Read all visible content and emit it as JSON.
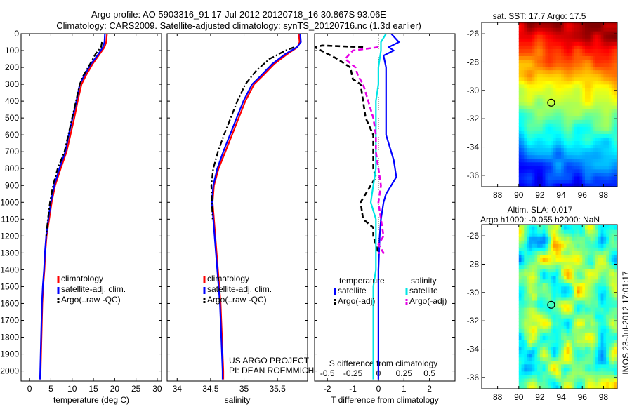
{
  "header": {
    "title_line1": "Argo profile: AO 5903316_91 17-Jul-2012 20120718_16 30.867S 93.06E",
    "title_line2": "Climatology: CARS2009. Satellite-adjusted climatology: synTS_20120716.nc (1.3d earlier)"
  },
  "chart_data": [
    {
      "type": "line",
      "id": "temperature",
      "xlabel": "temperature (deg C)",
      "ylabel": "",
      "xlim": [
        -2,
        31
      ],
      "ylim": [
        2060,
        0
      ],
      "xticks": [
        0,
        5,
        10,
        15,
        20,
        25,
        30
      ],
      "yticks": [
        0,
        100,
        200,
        300,
        400,
        500,
        600,
        700,
        800,
        900,
        1000,
        1100,
        1200,
        1300,
        1400,
        1500,
        1600,
        1700,
        1800,
        1900,
        2000
      ],
      "legend": [
        "climatology",
        "satellite-adj. clim.",
        "Argo(..raw -QC)"
      ],
      "legend_position": "bottom-right",
      "series": [
        {
          "name": "climatology",
          "color": "#ff0000",
          "style": "solid",
          "x": [
            18.2,
            18.0,
            17.6,
            16.5,
            14.8,
            13.2,
            12.2,
            11.3,
            10.5,
            9.6,
            8.7,
            7.3,
            6.0,
            5.2,
            4.6,
            4.0,
            3.7,
            3.5,
            3.2,
            3.0,
            2.9,
            2.8,
            2.7,
            2.6,
            2.55
          ],
          "y": [
            0,
            50,
            80,
            120,
            180,
            250,
            300,
            400,
            500,
            600,
            700,
            800,
            900,
            1000,
            1100,
            1200,
            1300,
            1400,
            1500,
            1600,
            1700,
            1800,
            1900,
            2000,
            2050
          ]
        },
        {
          "name": "satellite-adj. clim.",
          "color": "#0000ff",
          "style": "solid",
          "x": [
            17.7,
            17.6,
            17.2,
            16.2,
            14.4,
            12.8,
            11.8,
            11.0,
            10.1,
            9.2,
            8.4,
            7.0,
            5.8,
            5.0,
            4.4,
            3.9,
            3.6,
            3.4,
            3.1,
            2.9,
            2.8,
            2.7,
            2.6,
            2.5,
            2.45
          ],
          "y": [
            0,
            50,
            80,
            120,
            180,
            250,
            300,
            400,
            500,
            600,
            700,
            800,
            900,
            1000,
            1100,
            1200,
            1300,
            1400,
            1500,
            1600,
            1700,
            1800,
            1900,
            2000,
            2050
          ]
        },
        {
          "name": "Argo(..raw -QC)",
          "color": "#000000",
          "style": "dashdot",
          "x": [
            17.0,
            16.8,
            15.5,
            14.2,
            12.6,
            11.8,
            10.9,
            10.0,
            9.1,
            8.2,
            6.6,
            5.5,
            4.8,
            4.3,
            3.9
          ],
          "y": [
            50,
            80,
            120,
            180,
            250,
            300,
            400,
            500,
            600,
            700,
            800,
            900,
            1000,
            1100,
            1200
          ]
        }
      ]
    },
    {
      "type": "line",
      "id": "salinity",
      "xlabel": "salinity",
      "ylabel": "",
      "xlim": [
        33.85,
        35.95
      ],
      "ylim": [
        2060,
        0
      ],
      "xticks": [
        34,
        34.5,
        35,
        35.5
      ],
      "legend": [
        "climatology",
        "satellite-adj. clim.",
        "Argo(..raw -QC)"
      ],
      "legend_position": "bottom-right",
      "annotations": [
        "US ARGO PROJECT",
        "PI: DEAN ROEMMICH"
      ],
      "series": [
        {
          "name": "climatology",
          "color": "#ff0000",
          "style": "solid",
          "x": [
            35.82,
            35.83,
            35.8,
            35.65,
            35.45,
            35.28,
            35.15,
            35.02,
            34.92,
            34.82,
            34.72,
            34.62,
            34.55,
            34.53,
            34.55,
            34.57,
            34.59,
            34.61,
            34.63,
            34.65,
            34.66,
            34.67,
            34.68,
            34.69,
            34.69
          ],
          "y": [
            0,
            50,
            80,
            120,
            180,
            250,
            300,
            400,
            500,
            600,
            700,
            800,
            900,
            1000,
            1100,
            1200,
            1300,
            1400,
            1500,
            1600,
            1700,
            1800,
            1900,
            2000,
            2050
          ]
        },
        {
          "name": "satellite-adj. clim.",
          "color": "#0000ff",
          "style": "solid",
          "x": [
            35.84,
            35.85,
            35.79,
            35.62,
            35.42,
            35.25,
            35.12,
            34.99,
            34.89,
            34.79,
            34.69,
            34.6,
            34.54,
            34.52,
            34.54,
            34.56,
            34.58,
            34.6,
            34.62,
            34.64,
            34.65,
            34.66,
            34.67,
            34.68,
            34.68
          ],
          "y": [
            0,
            50,
            80,
            120,
            180,
            250,
            300,
            400,
            500,
            600,
            700,
            800,
            900,
            1000,
            1100,
            1200,
            1300,
            1400,
            1500,
            1600,
            1700,
            1800,
            1900,
            2000,
            2050
          ]
        },
        {
          "name": "Argo(..raw -QC)",
          "color": "#000000",
          "style": "dashdot",
          "x": [
            35.75,
            35.62,
            35.38,
            35.18,
            35.02,
            34.9,
            34.8,
            34.7,
            34.61,
            34.54,
            34.51,
            34.52,
            34.53
          ],
          "y": [
            80,
            100,
            150,
            220,
            300,
            400,
            500,
            600,
            700,
            800,
            900,
            1000,
            1100
          ]
        }
      ]
    },
    {
      "type": "line",
      "id": "difference",
      "xlabel": "T difference from climatology",
      "xlabel_top": "S difference from climatology",
      "xlim": [
        -2.5,
        3
      ],
      "ylim": [
        2060,
        0
      ],
      "xticks_t": [
        -2,
        -1,
        0,
        1,
        2
      ],
      "xticks_s_labels": [
        "-0.5",
        "-0.25",
        "0",
        "0.25",
        "0.5"
      ],
      "xticks_s_values": [
        -2,
        -1,
        0,
        1,
        2
      ],
      "legend_groups": [
        {
          "title": "temperature",
          "entries": [
            "satellite",
            "Argo(-adj)"
          ]
        },
        {
          "title": "salinity",
          "entries": [
            "satellite",
            "Argo(-adj)"
          ]
        }
      ],
      "series": [
        {
          "name": "temperature satellite",
          "color": "#0000ff",
          "style": "solid",
          "x": [
            0.5,
            0.8,
            0.4,
            0.6,
            0.2,
            0.3,
            0.3,
            0.3,
            0.3,
            0.3,
            0.6,
            0.7,
            0.5,
            0.3,
            0.2,
            0.1,
            0.05,
            0.0,
            0.0,
            0.0,
            0.0,
            0.0,
            0.0
          ],
          "y": [
            0,
            50,
            80,
            100,
            130,
            200,
            300,
            400,
            500,
            600,
            750,
            850,
            900,
            950,
            1000,
            1100,
            1200,
            1400,
            1600,
            1800,
            1900,
            2000,
            2050
          ]
        },
        {
          "name": "temperature Argo(-adj)",
          "color": "#000000",
          "style": "dash",
          "x": [
            -0.6,
            -2.2,
            -2.5,
            -1.6,
            -1.3,
            -1.1,
            -1.0,
            -0.7,
            -0.5,
            -0.2,
            -0.2,
            -0.2,
            -0.1,
            -0.3,
            -0.7,
            -0.6,
            -0.2,
            -0.2,
            0.0
          ],
          "y": [
            80,
            70,
            80,
            150,
            180,
            200,
            270,
            300,
            500,
            600,
            700,
            800,
            850,
            900,
            1000,
            1100,
            1150,
            1200,
            1300
          ]
        },
        {
          "name": "salinity satellite",
          "color": "#00e5e5",
          "style": "solid",
          "x": [
            0.3,
            0.1,
            0.1,
            0.0,
            0.0,
            -0.1,
            -0.1,
            -0.1,
            -0.1,
            -0.1,
            -0.2,
            -0.3,
            -0.1,
            -0.1,
            -0.1,
            -0.1,
            -0.2,
            -0.2,
            -0.2,
            -0.2,
            -0.2
          ],
          "y": [
            0,
            50,
            100,
            200,
            300,
            400,
            500,
            600,
            700,
            800,
            900,
            1000,
            1100,
            1200,
            1300,
            1400,
            1500,
            1600,
            1800,
            2000,
            2050
          ]
        },
        {
          "name": "salinity Argo(-adj)",
          "color": "#e600e6",
          "style": "dash",
          "x": [
            0.0,
            -1.0,
            -1.3,
            -0.9,
            -0.8,
            -0.6,
            -0.4,
            -0.2,
            -0.1,
            -0.1,
            0.0,
            0.1,
            0.0,
            0.1,
            0.2,
            0.0,
            0.2,
            0.0
          ],
          "y": [
            80,
            100,
            150,
            200,
            250,
            300,
            400,
            500,
            600,
            700,
            800,
            900,
            1000,
            1100,
            1200,
            1250,
            1300,
            1300
          ]
        }
      ]
    },
    {
      "type": "heatmap",
      "id": "sst_map",
      "title": "sat. SST: 17.7 Argo: 17.5",
      "xlim": [
        86.5,
        99.3
      ],
      "ylim": [
        -36.8,
        -25.2
      ],
      "xticks": [
        88,
        90,
        92,
        94,
        96,
        98
      ],
      "yticks": [
        -26,
        -28,
        -30,
        -32,
        -34,
        -36
      ],
      "data_xrange": [
        90,
        99.3
      ],
      "marker": {
        "lon": 93.06,
        "lat": -30.867
      }
    },
    {
      "type": "heatmap",
      "id": "sla_map",
      "title_line1": "Altim. SLA: 0.017",
      "title_line2": "Argo h1000: -0.055 h2000: NaN",
      "xlim": [
        86.5,
        99.3
      ],
      "ylim": [
        -36.8,
        -25.2
      ],
      "xticks": [
        88,
        90,
        92,
        94,
        96,
        98
      ],
      "yticks": [
        -26,
        -28,
        -30,
        -32,
        -34,
        -36
      ],
      "data_xrange": [
        90,
        99.3
      ],
      "marker": {
        "lon": 93.06,
        "lat": -30.867
      }
    }
  ],
  "footer": {
    "side_label": "IMOS 23-Jul-2012 17:01:17"
  }
}
